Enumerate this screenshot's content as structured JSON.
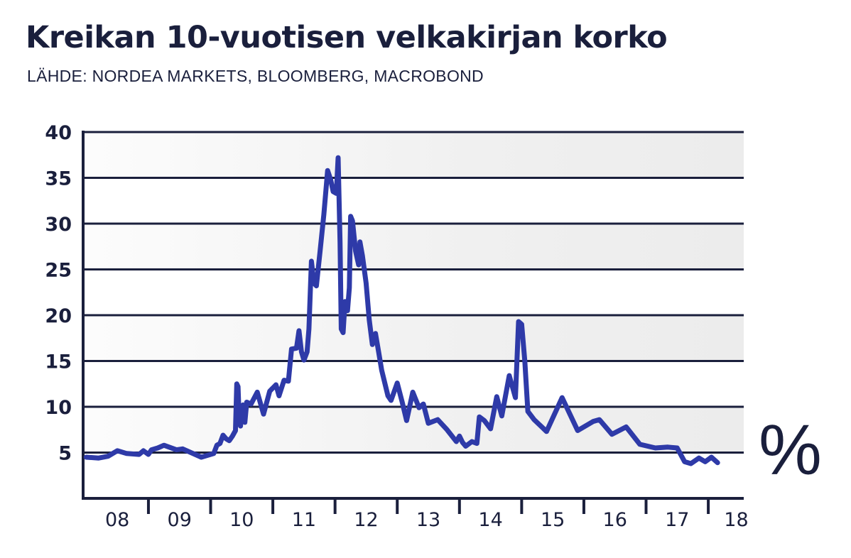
{
  "header": {
    "title": "Kreikan 10-vuotisen velkakirjan korko",
    "subtitle": "LÄHDE: NORDEA MARKETS, BLOOMBERG, MACROBOND"
  },
  "colors": {
    "line": "#2e3aa8",
    "axis": "#1a1f3c",
    "band": "#ececec"
  },
  "chart_data": {
    "type": "line",
    "title": "Kreikan 10-vuotisen velkakirjan korko",
    "subtitle": "LÄHDE: NORDEA MARKETS, BLOOMBERG, MACROBOND",
    "unit": "%",
    "xlabel": "",
    "ylabel": "",
    "xlim": [
      2007.95,
      2018.57
    ],
    "ylim": [
      0,
      40
    ],
    "yticks": [
      5,
      10,
      15,
      20,
      25,
      30,
      35,
      40
    ],
    "xtick_labels": [
      "08",
      "09",
      "10",
      "11",
      "12",
      "13",
      "14",
      "15",
      "16",
      "17",
      "18"
    ],
    "grid": true,
    "series": [
      {
        "values": [
          [
            2008.0,
            4.5
          ],
          [
            2008.2,
            4.4
          ],
          [
            2008.35,
            4.6
          ],
          [
            2008.5,
            5.2
          ],
          [
            2008.65,
            4.9
          ],
          [
            2008.85,
            4.8
          ],
          [
            2008.92,
            5.2
          ],
          [
            2009.0,
            4.8
          ],
          [
            2009.05,
            5.3
          ],
          [
            2009.15,
            5.5
          ],
          [
            2009.25,
            5.8
          ],
          [
            2009.45,
            5.3
          ],
          [
            2009.55,
            5.4
          ],
          [
            2009.85,
            4.5
          ],
          [
            2010.05,
            4.9
          ],
          [
            2010.1,
            5.8
          ],
          [
            2010.15,
            6.0
          ],
          [
            2010.2,
            6.9
          ],
          [
            2010.25,
            6.5
          ],
          [
            2010.3,
            6.3
          ],
          [
            2010.35,
            6.8
          ],
          [
            2010.4,
            7.4
          ],
          [
            2010.42,
            12.5
          ],
          [
            2010.44,
            12.2
          ],
          [
            2010.46,
            8.5
          ],
          [
            2010.48,
            7.9
          ],
          [
            2010.5,
            9.5
          ],
          [
            2010.52,
            10.2
          ],
          [
            2010.55,
            8.3
          ],
          [
            2010.58,
            10.5
          ],
          [
            2010.65,
            10.3
          ],
          [
            2010.75,
            11.6
          ],
          [
            2010.85,
            9.2
          ],
          [
            2010.95,
            11.7
          ],
          [
            2011.05,
            12.4
          ],
          [
            2011.1,
            11.2
          ],
          [
            2011.18,
            12.9
          ],
          [
            2011.25,
            12.8
          ],
          [
            2011.3,
            16.3
          ],
          [
            2011.38,
            16.4
          ],
          [
            2011.42,
            18.3
          ],
          [
            2011.46,
            16.0
          ],
          [
            2011.5,
            15.1
          ],
          [
            2011.55,
            16.0
          ],
          [
            2011.58,
            18.5
          ],
          [
            2011.62,
            25.9
          ],
          [
            2011.66,
            23.5
          ],
          [
            2011.7,
            23.2
          ],
          [
            2011.76,
            27.0
          ],
          [
            2011.82,
            31.0
          ],
          [
            2011.88,
            35.8
          ],
          [
            2011.93,
            34.8
          ],
          [
            2011.97,
            33.5
          ],
          [
            2012.02,
            33.3
          ],
          [
            2012.05,
            37.2
          ],
          [
            2012.08,
            28.0
          ],
          [
            2012.1,
            18.5
          ],
          [
            2012.13,
            18.1
          ],
          [
            2012.16,
            21.5
          ],
          [
            2012.2,
            20.5
          ],
          [
            2012.23,
            23.0
          ],
          [
            2012.25,
            30.8
          ],
          [
            2012.28,
            30.3
          ],
          [
            2012.33,
            27.0
          ],
          [
            2012.38,
            25.5
          ],
          [
            2012.4,
            28.0
          ],
          [
            2012.44,
            26.5
          ],
          [
            2012.5,
            23.5
          ],
          [
            2012.55,
            19.5
          ],
          [
            2012.6,
            16.8
          ],
          [
            2012.65,
            18.0
          ],
          [
            2012.7,
            16.0
          ],
          [
            2012.75,
            14.0
          ],
          [
            2012.85,
            11.2
          ],
          [
            2012.9,
            10.7
          ],
          [
            2013.0,
            12.6
          ],
          [
            2013.08,
            10.5
          ],
          [
            2013.15,
            8.5
          ],
          [
            2013.25,
            11.6
          ],
          [
            2013.35,
            9.9
          ],
          [
            2013.42,
            10.3
          ],
          [
            2013.5,
            8.2
          ],
          [
            2013.65,
            8.6
          ],
          [
            2013.8,
            7.5
          ],
          [
            2013.95,
            6.2
          ],
          [
            2014.0,
            6.8
          ],
          [
            2014.05,
            6.1
          ],
          [
            2014.1,
            5.7
          ],
          [
            2014.2,
            6.2
          ],
          [
            2014.28,
            6.0
          ],
          [
            2014.32,
            8.9
          ],
          [
            2014.4,
            8.5
          ],
          [
            2014.5,
            7.6
          ],
          [
            2014.6,
            11.1
          ],
          [
            2014.68,
            9.0
          ],
          [
            2014.8,
            13.4
          ],
          [
            2014.9,
            11.0
          ],
          [
            2014.95,
            19.3
          ],
          [
            2015.0,
            19.0
          ],
          [
            2015.05,
            15.0
          ],
          [
            2015.1,
            9.5
          ],
          [
            2015.2,
            8.6
          ],
          [
            2015.4,
            7.3
          ],
          [
            2015.65,
            11.0
          ],
          [
            2015.9,
            7.4
          ],
          [
            2016.15,
            8.4
          ],
          [
            2016.25,
            8.6
          ],
          [
            2016.45,
            7.0
          ],
          [
            2016.68,
            7.8
          ],
          [
            2016.9,
            5.9
          ],
          [
            2017.15,
            5.5
          ],
          [
            2017.35,
            5.6
          ],
          [
            2017.5,
            5.5
          ],
          [
            2017.62,
            4.0
          ],
          [
            2017.72,
            3.8
          ],
          [
            2017.85,
            4.4
          ],
          [
            2017.95,
            4.0
          ],
          [
            2018.05,
            4.5
          ],
          [
            2018.15,
            3.9
          ]
        ]
      }
    ]
  }
}
